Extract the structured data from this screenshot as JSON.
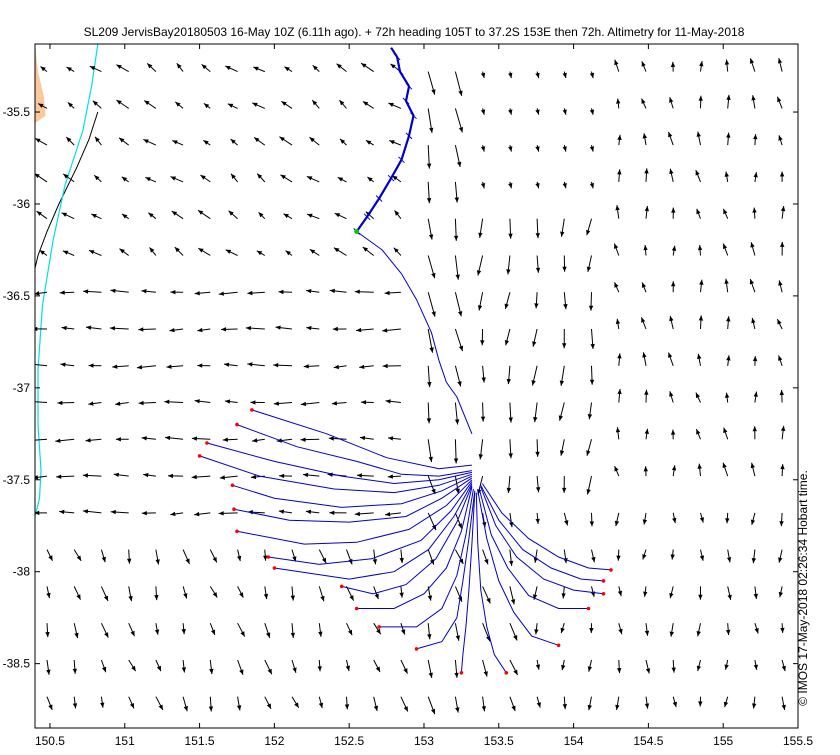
{
  "chart_data": {
    "type": "vector-field",
    "title": "SL209 JervisBay20180503 16-May 10Z (6.11h ago). + 72h heading 105T to 37.2S 153E then 72h. Altimetry for 11-May-2018",
    "credit": "© IMOS 17-May-2018 02:26:34 Hobart time.",
    "xlim": [
      150.4,
      155.5
    ],
    "ylim": [
      -38.85,
      -35.13
    ],
    "xticks": [
      150.5,
      151,
      151.5,
      152,
      152.5,
      153,
      153.5,
      154,
      154.5,
      155,
      155.5
    ],
    "xtick_labels": [
      "150.5",
      "151",
      "151.5",
      "152",
      "152.5",
      "153",
      "153.5",
      "154",
      "154.5",
      "155",
      "155.5"
    ],
    "yticks": [
      -35.5,
      -36,
      -36.5,
      -37,
      -37.5,
      -38,
      -38.5
    ],
    "ytick_labels": [
      "-35.5",
      "-36",
      "-36.5",
      "-37",
      "-37.5",
      "-38",
      "-38.5"
    ],
    "grid": false,
    "colors": {
      "land": "#fbc89a",
      "trajectory": "#0000cc",
      "endpoint": "#ff0000",
      "isobath_inner": "#00e0e0",
      "isobath_outer": "#000000",
      "arrows": "#000000",
      "glider_start": "#00cc00"
    },
    "vector_grid": {
      "lon_start": 150.48,
      "lon_step": 0.182,
      "lon_count": 28,
      "lat_start": -35.28,
      "lat_step": -0.2,
      "lat_count": 18,
      "units_to_deg": 0.22,
      "regions": [
        {
          "lon_min": 152.85,
          "lon_max": 153.35,
          "lat_min": -37.3,
          "lat_max": -35.2,
          "u": 0.05,
          "v": -0.35
        },
        {
          "lon_min": 153.35,
          "lon_max": 154.2,
          "lat_min": -37.5,
          "lat_max": -36.0,
          "u": -0.02,
          "v": -0.28
        },
        {
          "lon_min": 153.0,
          "lon_max": 153.6,
          "lat_min": -38.8,
          "lat_max": -37.3,
          "u": 0.06,
          "v": -0.25
        },
        {
          "lon_min": 153.6,
          "lon_max": 155.5,
          "lat_min": -38.8,
          "lat_max": -37.5,
          "u": 0.0,
          "v": -0.18
        },
        {
          "lon_min": 154.2,
          "lon_max": 155.5,
          "lat_min": -37.5,
          "lat_max": -35.2,
          "u": -0.02,
          "v": 0.18
        },
        {
          "lon_min": 150.4,
          "lon_max": 152.85,
          "lat_min": -37.7,
          "lat_max": -36.3,
          "u": -0.2,
          "v": 0.0
        },
        {
          "lon_min": 150.4,
          "lon_max": 152.85,
          "lat_min": -36.3,
          "lat_max": -35.2,
          "u": -0.12,
          "v": 0.1
        },
        {
          "lon_min": 150.4,
          "lon_max": 153.0,
          "lat_min": -38.8,
          "lat_max": -37.7,
          "u": 0.05,
          "v": -0.2
        }
      ]
    },
    "glider_track": {
      "lon": [
        152.55,
        152.62,
        152.7,
        152.78,
        152.85,
        152.9,
        152.93,
        152.88,
        152.9,
        152.84,
        152.82,
        152.78
      ],
      "lat": [
        -36.15,
        -36.07,
        -35.97,
        -35.86,
        -35.76,
        -35.63,
        -35.52,
        -35.44,
        -35.36,
        -35.28,
        -35.2,
        -35.15
      ]
    },
    "forecast_paths": [
      {
        "lon": [
          152.55,
          152.72,
          152.85,
          152.95,
          153.05,
          153.1,
          153.15,
          153.22,
          153.27,
          153.32
        ],
        "lat": [
          -36.15,
          -36.25,
          -36.38,
          -36.52,
          -36.7,
          -36.85,
          -36.97,
          -37.05,
          -37.15,
          -37.25
        ]
      },
      {
        "lon": [
          153.32,
          153.1,
          152.75,
          152.35,
          151.85
        ],
        "lat": [
          -37.42,
          -37.44,
          -37.38,
          -37.25,
          -37.12
        ]
      },
      {
        "lon": [
          153.32,
          153.1,
          152.85,
          152.55,
          152.15,
          151.75
        ],
        "lat": [
          -37.45,
          -37.48,
          -37.47,
          -37.4,
          -37.32,
          -37.2
        ]
      },
      {
        "lon": [
          153.32,
          153.1,
          152.8,
          152.45,
          152.0,
          151.55
        ],
        "lat": [
          -37.46,
          -37.5,
          -37.52,
          -37.48,
          -37.4,
          -37.3
        ]
      },
      {
        "lon": [
          153.32,
          153.1,
          152.8,
          152.4,
          151.9,
          151.5
        ],
        "lat": [
          -37.47,
          -37.53,
          -37.57,
          -37.55,
          -37.48,
          -37.37
        ]
      },
      {
        "lon": [
          153.32,
          153.12,
          152.85,
          152.45,
          152.0,
          151.72
        ],
        "lat": [
          -37.48,
          -37.56,
          -37.63,
          -37.65,
          -37.6,
          -37.53
        ]
      },
      {
        "lon": [
          153.32,
          153.12,
          152.88,
          152.5,
          152.1,
          151.73
        ],
        "lat": [
          -37.49,
          -37.6,
          -37.7,
          -37.73,
          -37.72,
          -37.66
        ]
      },
      {
        "lon": [
          153.32,
          153.15,
          152.9,
          152.55,
          152.2,
          151.75
        ],
        "lat": [
          -37.5,
          -37.64,
          -37.77,
          -37.84,
          -37.85,
          -37.78
        ]
      },
      {
        "lon": [
          153.32,
          153.18,
          152.98,
          152.65,
          152.3,
          151.96
        ],
        "lat": [
          -37.51,
          -37.67,
          -37.83,
          -37.93,
          -37.96,
          -37.92
        ]
      },
      {
        "lon": [
          153.32,
          153.2,
          153.03,
          152.8,
          152.5,
          152.0
        ],
        "lat": [
          -37.52,
          -37.7,
          -37.88,
          -38.0,
          -38.04,
          -37.98
        ]
      },
      {
        "lon": [
          153.32,
          153.22,
          153.08,
          152.88,
          152.66,
          152.45
        ],
        "lat": [
          -37.53,
          -37.73,
          -37.93,
          -38.07,
          -38.12,
          -38.08
        ]
      },
      {
        "lon": [
          153.32,
          153.25,
          153.15,
          153.0,
          152.8,
          152.55
        ],
        "lat": [
          -37.54,
          -37.78,
          -37.98,
          -38.12,
          -38.2,
          -38.2
        ]
      },
      {
        "lon": [
          153.33,
          153.28,
          153.22,
          153.12,
          152.95,
          152.7
        ],
        "lat": [
          -37.55,
          -37.8,
          -38.02,
          -38.2,
          -38.3,
          -38.3
        ]
      },
      {
        "lon": [
          153.34,
          153.3,
          153.26,
          153.22,
          153.12,
          152.95
        ],
        "lat": [
          -37.56,
          -37.82,
          -38.05,
          -38.25,
          -38.38,
          -38.42
        ]
      },
      {
        "lon": [
          153.34,
          153.32,
          153.3,
          153.28,
          153.26,
          153.25
        ],
        "lat": [
          -37.57,
          -37.85,
          -38.1,
          -38.3,
          -38.45,
          -38.55
        ]
      },
      {
        "lon": [
          153.35,
          153.36,
          153.38,
          153.42,
          153.47,
          153.55
        ],
        "lat": [
          -37.57,
          -37.85,
          -38.1,
          -38.3,
          -38.45,
          -38.55
        ]
      },
      {
        "lon": [
          153.36,
          153.42,
          153.5,
          153.6,
          153.72,
          153.9
        ],
        "lat": [
          -37.56,
          -37.82,
          -38.05,
          -38.22,
          -38.35,
          -38.4
        ]
      },
      {
        "lon": [
          153.37,
          153.45,
          153.56,
          153.7,
          153.9,
          154.1
        ],
        "lat": [
          -37.55,
          -37.8,
          -37.98,
          -38.13,
          -38.2,
          -38.2
        ]
      },
      {
        "lon": [
          153.38,
          153.48,
          153.62,
          153.8,
          154.0,
          154.2
        ],
        "lat": [
          -37.54,
          -37.75,
          -37.92,
          -38.04,
          -38.1,
          -38.12
        ]
      },
      {
        "lon": [
          153.38,
          153.5,
          153.66,
          153.85,
          154.05,
          154.2
        ],
        "lat": [
          -37.53,
          -37.72,
          -37.88,
          -37.98,
          -38.04,
          -38.05
        ]
      },
      {
        "lon": [
          153.39,
          153.52,
          153.7,
          153.9,
          154.1,
          154.25
        ],
        "lat": [
          -37.52,
          -37.68,
          -37.82,
          -37.92,
          -37.98,
          -37.99
        ]
      }
    ],
    "coastline": {
      "lon": [
        150.4,
        150.4,
        150.47,
        150.46,
        150.42,
        150.4
      ],
      "lat": [
        -35.13,
        -35.56,
        -35.52,
        -35.42,
        -35.28,
        -35.13
      ]
    },
    "isobath_inner": {
      "lon": [
        150.82,
        150.78,
        150.72,
        150.6,
        150.52,
        150.45,
        150.42,
        150.42,
        150.44,
        150.43,
        150.4
      ],
      "lat": [
        -35.13,
        -35.35,
        -35.6,
        -35.9,
        -36.2,
        -36.55,
        -36.9,
        -37.2,
        -37.45,
        -37.6,
        -37.7
      ]
    },
    "isobath_outer": {
      "lon": [
        150.82,
        150.76,
        150.68,
        150.56,
        150.48,
        150.42,
        150.4
      ],
      "lat": [
        -35.5,
        -35.65,
        -35.8,
        -36.0,
        -36.15,
        -36.28,
        -36.35
      ]
    }
  }
}
